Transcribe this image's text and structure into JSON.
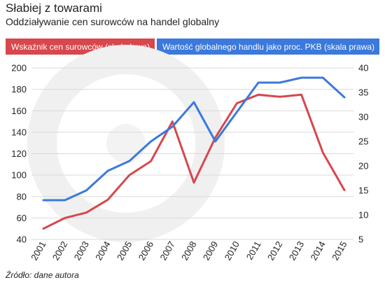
{
  "header": {
    "title": "Słabiej z towarami",
    "subtitle": "Oddziaływanie cen surowców na handel globalny"
  },
  "legend": {
    "left_label": "Wskaźnik cen surowców (skala lewa)",
    "right_label": "Wartość globalnego handlu jako proc. PKB (skala prawa)"
  },
  "source": "Źródło: dane autora",
  "colors": {
    "red": "#d7474c",
    "blue": "#3b79dc",
    "grid": "#d9d9d9"
  },
  "chart_data": {
    "type": "line",
    "categories": [
      "2001",
      "2002",
      "2003",
      "2004",
      "2005",
      "2006",
      "2007",
      "2008",
      "2009",
      "2010",
      "2011",
      "2012",
      "2013",
      "2014",
      "2015"
    ],
    "series": [
      {
        "name": "Wskaźnik cen surowców (skala lewa)",
        "axis": "left",
        "color": "#d7474c",
        "values": [
          50,
          60,
          65,
          77,
          100,
          113,
          150,
          93,
          135,
          167,
          175,
          173,
          175,
          121,
          86
        ]
      },
      {
        "name": "Wartość globalnego handlu jako proc. PKB (skala prawa)",
        "axis": "right",
        "color": "#3b79dc",
        "values": [
          13,
          13,
          15,
          19,
          21,
          25,
          28,
          33,
          25,
          31,
          37,
          37,
          38,
          38,
          34
        ]
      }
    ],
    "y_left": {
      "lim": [
        40,
        200
      ],
      "ticks": [
        40,
        60,
        80,
        100,
        120,
        140,
        160,
        180,
        200
      ]
    },
    "y_right": {
      "lim": [
        5,
        40
      ],
      "ticks": [
        5,
        10,
        15,
        20,
        25,
        30,
        35,
        40
      ]
    },
    "grid": true
  }
}
